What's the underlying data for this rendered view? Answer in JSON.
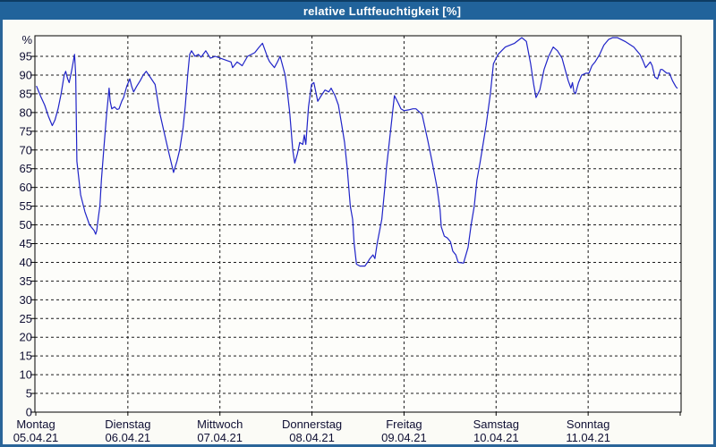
{
  "window": {
    "title": "relative Luftfeuchtigkeit [%]",
    "colors": {
      "title_bar": "#21639b",
      "title_text": "#ffffff",
      "window_border": "#2a6599",
      "background": "#fbfbf6",
      "plot_background": "#fdfdfa",
      "grid": "#1c1c1c",
      "axis_text": "#0f0f33",
      "line": "#2024c8"
    }
  },
  "chart_data": {
    "type": "line",
    "title": "relative Luftfeuchtigkeit [%]",
    "ylabel": "%",
    "unit_label": "%",
    "ylim": [
      0,
      100.5
    ],
    "y_tick_step": 5,
    "y_ticks": [
      0,
      5,
      10,
      15,
      20,
      25,
      30,
      35,
      40,
      45,
      50,
      55,
      60,
      65,
      70,
      75,
      80,
      85,
      90,
      95
    ],
    "grid": "dashed",
    "legend": "none",
    "x_total_hours": 168,
    "x_days": [
      {
        "name": "Montag",
        "date": "05.04.21"
      },
      {
        "name": "Dienstag",
        "date": "06.04.21"
      },
      {
        "name": "Mittwoch",
        "date": "07.04.21"
      },
      {
        "name": "Donnerstag",
        "date": "08.04.21"
      },
      {
        "name": "Freitag",
        "date": "09.04.21"
      },
      {
        "name": "Samstag",
        "date": "10.04.21"
      },
      {
        "name": "Sonntag",
        "date": "11.04.21"
      }
    ],
    "series": [
      {
        "name": "relative Luftfeuchtigkeit",
        "points": [
          [
            0.2,
            87
          ],
          [
            1.2,
            84.5
          ],
          [
            2.3,
            82
          ],
          [
            3.3,
            79
          ],
          [
            4.3,
            76.5
          ],
          [
            5.0,
            78
          ],
          [
            5.8,
            81
          ],
          [
            6.6,
            85
          ],
          [
            7.4,
            90
          ],
          [
            7.8,
            91
          ],
          [
            8.3,
            89
          ],
          [
            8.7,
            88
          ],
          [
            9.3,
            91
          ],
          [
            10.1,
            95.5
          ],
          [
            10.4,
            90
          ],
          [
            10.7,
            67
          ],
          [
            11.7,
            58
          ],
          [
            12.8,
            53.5
          ],
          [
            14.0,
            50
          ],
          [
            15.2,
            48.5
          ],
          [
            15.6,
            47.5
          ],
          [
            15.9,
            48.5
          ],
          [
            16.3,
            52
          ],
          [
            16.7,
            55
          ],
          [
            17.1,
            62
          ],
          [
            17.7,
            70
          ],
          [
            18.4,
            79
          ],
          [
            19.1,
            86.5
          ],
          [
            19.4,
            83
          ],
          [
            19.8,
            81
          ],
          [
            20.5,
            81.5
          ],
          [
            21.2,
            80.8
          ],
          [
            21.7,
            81
          ],
          [
            22.4,
            83
          ],
          [
            22.9,
            84
          ],
          [
            23.7,
            87
          ],
          [
            24.5,
            89
          ],
          [
            25.0,
            87
          ],
          [
            25.5,
            85.5
          ],
          [
            26.3,
            87
          ],
          [
            27.2,
            88.5
          ],
          [
            28.0,
            90
          ],
          [
            28.8,
            91
          ],
          [
            29.8,
            89.5
          ],
          [
            31.1,
            87.5
          ],
          [
            32.3,
            80
          ],
          [
            33.4,
            75
          ],
          [
            34.5,
            70
          ],
          [
            35.9,
            64
          ],
          [
            36.8,
            67
          ],
          [
            37.5,
            70
          ],
          [
            38.4,
            76
          ],
          [
            39.0,
            82
          ],
          [
            39.6,
            90
          ],
          [
            40.1,
            95.5
          ],
          [
            40.6,
            96.5
          ],
          [
            41.5,
            95
          ],
          [
            42.4,
            95.5
          ],
          [
            43.1,
            94.8
          ],
          [
            44.3,
            96.5
          ],
          [
            45.5,
            94.5
          ],
          [
            46.8,
            95
          ],
          [
            48.1,
            94.5
          ],
          [
            49.5,
            94
          ],
          [
            50.9,
            93.5
          ],
          [
            51.3,
            92
          ],
          [
            52.5,
            93.5
          ],
          [
            53.8,
            92.5
          ],
          [
            55.2,
            95
          ],
          [
            57.1,
            96
          ],
          [
            58.1,
            97.3
          ],
          [
            59.1,
            98.5
          ],
          [
            60.0,
            96
          ],
          [
            60.5,
            94.5
          ],
          [
            61.0,
            93.5
          ],
          [
            62.2,
            92
          ],
          [
            63.0,
            93.5
          ],
          [
            63.7,
            95
          ],
          [
            65.0,
            90
          ],
          [
            65.6,
            85.5
          ],
          [
            66.2,
            80
          ],
          [
            67.0,
            70
          ],
          [
            67.5,
            66.5
          ],
          [
            68.2,
            69
          ],
          [
            68.8,
            72
          ],
          [
            69.6,
            71.5
          ],
          [
            70.0,
            74
          ],
          [
            70.4,
            71.5
          ],
          [
            71.1,
            81.5
          ],
          [
            71.9,
            87.5
          ],
          [
            72.5,
            88
          ],
          [
            73.5,
            83
          ],
          [
            74.4,
            84.5
          ],
          [
            75.4,
            86
          ],
          [
            76.4,
            85.5
          ],
          [
            77.0,
            86.5
          ],
          [
            78.0,
            84.5
          ],
          [
            78.9,
            82
          ],
          [
            79.7,
            77
          ],
          [
            80.5,
            72
          ],
          [
            81.2,
            65
          ],
          [
            82.0,
            55
          ],
          [
            82.6,
            51.5
          ],
          [
            83.0,
            45
          ],
          [
            83.6,
            39.5
          ],
          [
            84.5,
            39
          ],
          [
            85.8,
            39
          ],
          [
            86.5,
            40
          ],
          [
            87.1,
            41
          ],
          [
            87.9,
            42
          ],
          [
            88.4,
            41
          ],
          [
            89.0,
            45
          ],
          [
            90.2,
            51.5
          ],
          [
            91.0,
            60
          ],
          [
            91.4,
            65
          ],
          [
            92.1,
            71.5
          ],
          [
            92.8,
            78
          ],
          [
            93.5,
            84.5
          ],
          [
            94.5,
            82.5
          ],
          [
            95.2,
            81
          ],
          [
            96.0,
            80.5
          ],
          [
            97.2,
            80.7
          ],
          [
            98.3,
            81
          ],
          [
            99.1,
            81
          ],
          [
            100.7,
            79.5
          ],
          [
            102.2,
            72.5
          ],
          [
            103.4,
            66.5
          ],
          [
            104.6,
            60
          ],
          [
            105.4,
            54
          ],
          [
            105.7,
            49.5
          ],
          [
            106.5,
            47
          ],
          [
            107.3,
            46.5
          ],
          [
            108.1,
            45.5
          ],
          [
            108.7,
            43
          ],
          [
            109.5,
            42
          ],
          [
            110.1,
            40
          ],
          [
            111.5,
            39.8
          ],
          [
            112.7,
            44
          ],
          [
            113.5,
            50
          ],
          [
            114.3,
            55
          ],
          [
            115.0,
            62
          ],
          [
            115.8,
            66.5
          ],
          [
            116.2,
            69
          ],
          [
            117.4,
            76.5
          ],
          [
            118.5,
            85
          ],
          [
            119.3,
            93
          ],
          [
            120.5,
            95.5
          ],
          [
            122.4,
            97.5
          ],
          [
            124.8,
            98.5
          ],
          [
            126.7,
            100
          ],
          [
            127.9,
            99
          ],
          [
            129.0,
            93
          ],
          [
            129.8,
            87.5
          ],
          [
            130.4,
            84
          ],
          [
            131.4,
            86
          ],
          [
            132.5,
            91.5
          ],
          [
            133.7,
            95
          ],
          [
            134.9,
            97.5
          ],
          [
            136.0,
            96.5
          ],
          [
            137.2,
            94.5
          ],
          [
            138.0,
            91.5
          ],
          [
            138.8,
            88.5
          ],
          [
            139.5,
            86.5
          ],
          [
            139.9,
            88
          ],
          [
            140.3,
            85.5
          ],
          [
            140.7,
            85
          ],
          [
            141.5,
            88
          ],
          [
            142.3,
            90
          ],
          [
            143.4,
            90.5
          ],
          [
            144.2,
            90.5
          ],
          [
            145.0,
            92.5
          ],
          [
            145.8,
            93.5
          ],
          [
            147.0,
            95.5
          ],
          [
            148.1,
            98
          ],
          [
            149.3,
            99.5
          ],
          [
            150.4,
            100
          ],
          [
            151.6,
            100
          ],
          [
            153.6,
            99
          ],
          [
            155.9,
            97.5
          ],
          [
            157.5,
            95.5
          ],
          [
            158.2,
            94
          ],
          [
            159.0,
            92
          ],
          [
            160.2,
            93.5
          ],
          [
            160.7,
            92.5
          ],
          [
            161.4,
            89.5
          ],
          [
            162.1,
            89
          ],
          [
            162.9,
            91.5
          ],
          [
            163.3,
            91.5
          ],
          [
            164.5,
            90.5
          ],
          [
            165.2,
            90.5
          ],
          [
            166.0,
            88.5
          ],
          [
            166.8,
            87
          ],
          [
            167.2,
            86.5
          ]
        ]
      }
    ]
  }
}
